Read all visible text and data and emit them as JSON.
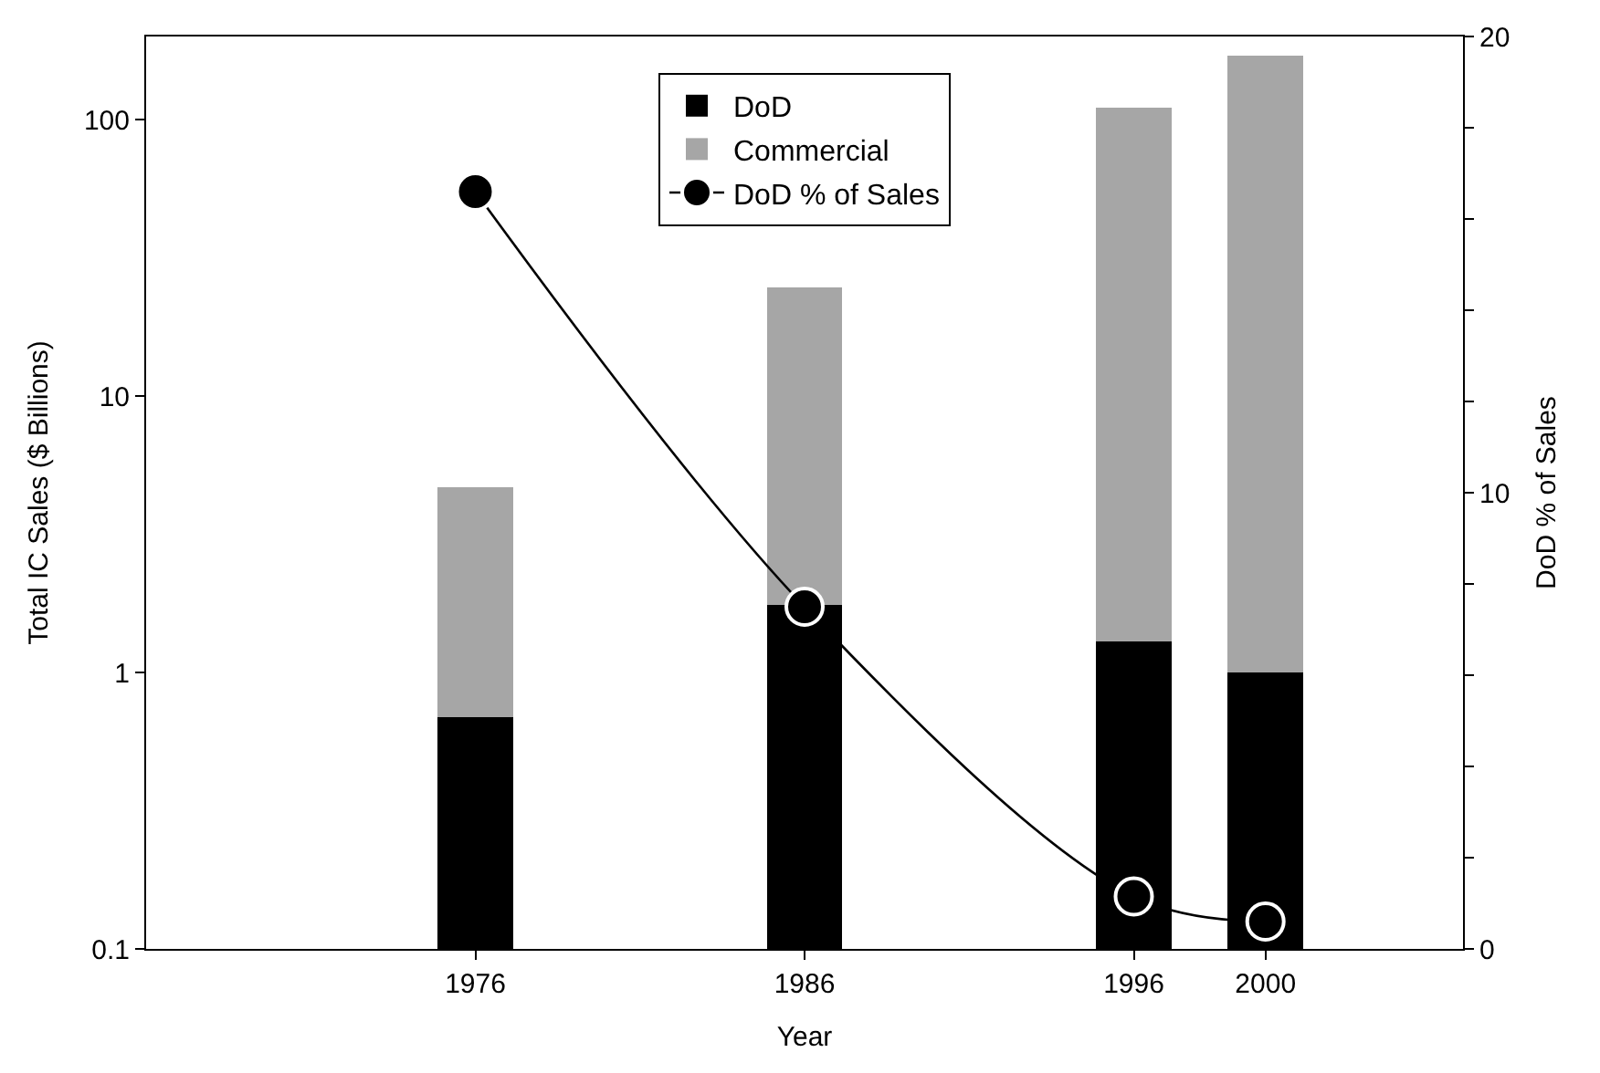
{
  "chart_data": {
    "type": "bar",
    "xlabel": "Year",
    "ylabel": "Total IC Sales ($ Billions)",
    "y2label": "DoD % of Sales",
    "x": [
      1976,
      1986,
      1996,
      2000
    ],
    "stacked": true,
    "log": "y",
    "legend": "top",
    "xlim": [
      1966,
      2006
    ],
    "xticks": [
      1976,
      1986,
      1996,
      2000
    ],
    "ylim": [
      0.1,
      200
    ],
    "yticks": [
      0.1,
      1,
      10,
      100
    ],
    "y2lim": [
      0,
      20
    ],
    "y2ticks": [
      0,
      {
        "value": 2,
        "label": null
      },
      {
        "value": 4,
        "label": null
      },
      {
        "value": 6,
        "label": null
      },
      {
        "value": 8,
        "label": null
      },
      10,
      {
        "value": 12,
        "label": null
      },
      {
        "value": 14,
        "label": null
      },
      {
        "value": 16,
        "label": null
      },
      {
        "value": 18,
        "label": null
      },
      20
    ],
    "series": [
      {
        "name": "DoD",
        "color": "#000000",
        "values": [
          0.69,
          1.75,
          1.3,
          1.0
        ]
      },
      {
        "name": "Commercial",
        "color": "#a6a6a6",
        "values": [
          4.0,
          23,
          109,
          169
        ]
      },
      {
        "name": "DoD % of Sales",
        "type": "line",
        "axis": "y2",
        "color": "#000000",
        "marker": "circle",
        "line_style": "solid",
        "values": [
          16.6,
          7.5,
          1.15,
          0.6
        ]
      }
    ]
  }
}
